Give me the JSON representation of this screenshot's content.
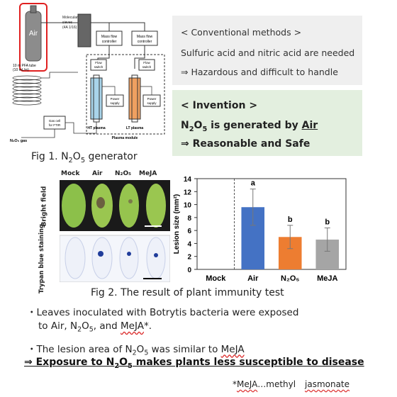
{
  "generator": {
    "air_label": "Air",
    "molecular_sieves": "Molecular sieves (4A 1/16)",
    "mfc": "Mass flow controller",
    "tube": "10 m PFA tube (10 mL/m)",
    "flow_switch": "Flow switch",
    "power_supply": "Power supply",
    "ht_plasma": "HT plasma",
    "lt_plasma": "LT plasma",
    "plasma_module": "Plasma module",
    "gas_cell": "Gas cell for FTIR",
    "output_gas": "N₂O₅ gas"
  },
  "fig1_caption": {
    "prefix": "Fig 1. N",
    "sub": "2",
    "mid": "O",
    "sub2": "5",
    "suffix": " generator"
  },
  "conventional": {
    "title": "< Conventional methods >",
    "line1": "Sulfuric acid and nitric acid are needed",
    "line2": "⇒ Hazardous and difficult to handle"
  },
  "invention": {
    "title": "< Invention >",
    "line1_prefix": "N",
    "line1_sub": "2",
    "line1_mid": "O",
    "line1_sub2": "5",
    "line1_text": " is generated by ",
    "line1_air": "Air",
    "line2": "⇒ Reasonable and Safe"
  },
  "leaves": {
    "columns": [
      "Mock",
      "Air",
      "N₂O₅",
      "MeJA"
    ],
    "row1_label": "Bright field",
    "row2_label": "Trypan blue staining"
  },
  "chart_data": {
    "type": "bar",
    "categories": [
      "Mock",
      "Air",
      "N₂O₅",
      "MeJA"
    ],
    "values": [
      0,
      9.6,
      5.0,
      4.6
    ],
    "errors": [
      0,
      2.8,
      1.8,
      1.8
    ],
    "letters": [
      "",
      "a",
      "b",
      "b"
    ],
    "colors": [
      "#ffffff",
      "#4472c4",
      "#ed7d31",
      "#a5a5a5"
    ],
    "ylabel": "Lesion size (mm²)",
    "ylim": [
      0,
      14
    ],
    "yticks": [
      0,
      2,
      4,
      6,
      8,
      10,
      12,
      14
    ]
  },
  "fig2_caption": "Fig 2. The result of plant immunity test",
  "bullets": {
    "b1_line1": "・Leaves inoculated with Botrytis bacteria were exposed",
    "b1_line2_a": "to Air, N",
    "b1_line2_sub": "2",
    "b1_line2_b": "O",
    "b1_line2_sub2": "5",
    "b1_line2_c": ", and ",
    "b1_line2_meja": "MeJA",
    "b1_line2_d": "*.",
    "b2_a": "・The lesion area of N",
    "b2_sub": "2",
    "b2_b": "O",
    "b2_sub2": "5",
    "b2_c": " was similar to ",
    "b2_meja": "MeJA"
  },
  "conclusion": {
    "a": "⇒ Exposure to N",
    "sub": "2",
    "b": "O",
    "sub2": "5",
    "c": " makes plants less susceptible to disease"
  },
  "footnote": {
    "a": "*",
    "meja": "MeJA",
    "b": "…methyl ",
    "jasmonate": "jasmonate"
  }
}
